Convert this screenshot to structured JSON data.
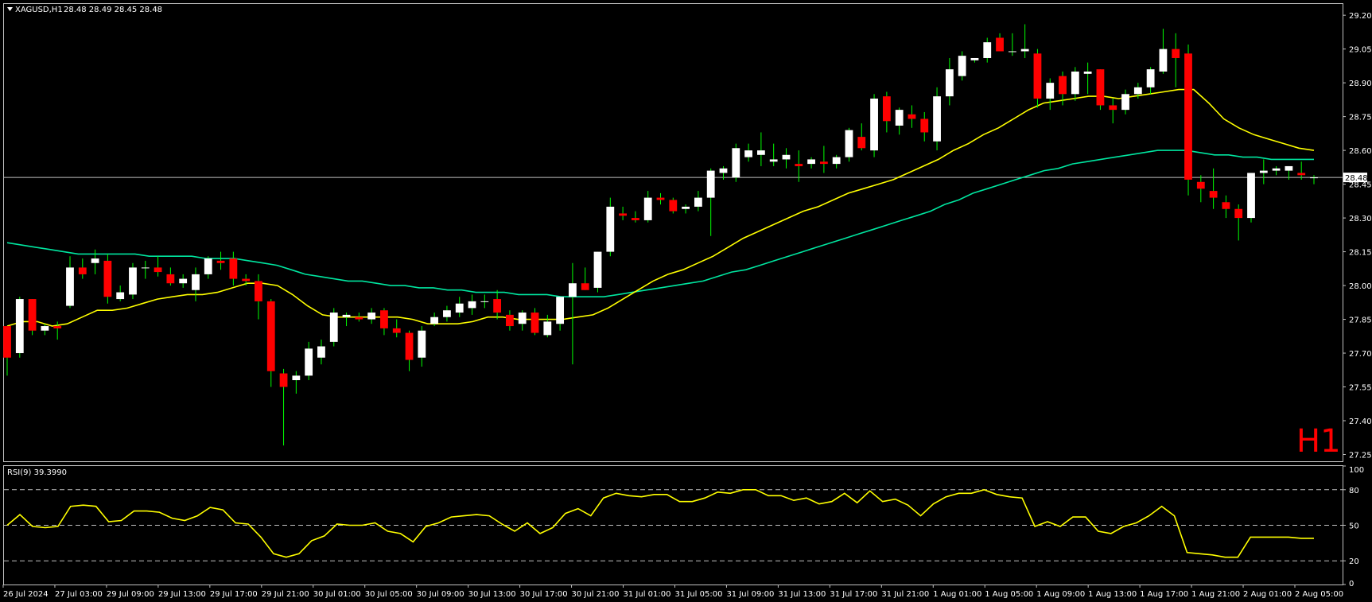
{
  "header": {
    "symbol": "XAGUSD,H1",
    "ohlc": "28.48 28.49 28.45 28.48"
  },
  "timeframe_label": "H1",
  "current_price_label": "28.48",
  "colors": {
    "background": "#000000",
    "frame": "#c0c0c0",
    "bull_candle": "#ffffff",
    "bear_candle": "#ff0000",
    "wick": "#00ff00",
    "ma_fast": "#ffff00",
    "ma_slow": "#00e6a0",
    "rsi_line": "#ffff00",
    "timeframe_label": "#ff0000"
  },
  "rsi_panel": {
    "label": "RSI(9) 39.3990",
    "levels": [
      80,
      50,
      20
    ],
    "ticks": [
      "100",
      "80",
      "50",
      "20",
      "0"
    ]
  },
  "chart_data": {
    "type": "candlestick",
    "symbol": "XAGUSD",
    "price_axis": {
      "min": 27.22,
      "max": 29.25,
      "ticks": [
        "29.20",
        "29.05",
        "28.90",
        "28.75",
        "28.60",
        "28.45",
        "28.30",
        "28.15",
        "28.00",
        "27.85",
        "27.70",
        "27.55",
        "27.40",
        "27.25"
      ]
    },
    "time_axis_labels": [
      "26 Jul 2024",
      "27 Jul 03:00",
      "29 Jul 09:00",
      "29 Jul 13:00",
      "29 Jul 17:00",
      "29 Jul 21:00",
      "30 Jul 01:00",
      "30 Jul 05:00",
      "30 Jul 09:00",
      "30 Jul 13:00",
      "30 Jul 17:00",
      "30 Jul 21:00",
      "31 Jul 01:00",
      "31 Jul 05:00",
      "31 Jul 09:00",
      "31 Jul 13:00",
      "31 Jul 17:00",
      "31 Jul 21:00",
      "1 Aug 01:00",
      "1 Aug 05:00",
      "1 Aug 09:00",
      "1 Aug 13:00",
      "1 Aug 17:00",
      "1 Aug 21:00",
      "2 Aug 01:00",
      "2 Aug 05:00"
    ],
    "current_price": 28.48,
    "candles": [
      [
        27.82,
        27.82,
        27.6,
        27.68
      ],
      [
        27.7,
        27.95,
        27.68,
        27.94
      ],
      [
        27.94,
        27.94,
        27.78,
        27.8
      ],
      [
        27.8,
        27.83,
        27.78,
        27.82
      ],
      [
        27.82,
        27.84,
        27.76,
        27.81
      ],
      [
        27.91,
        28.13,
        27.9,
        28.08
      ],
      [
        28.08,
        28.12,
        28.03,
        28.05
      ],
      [
        28.1,
        28.16,
        28.05,
        28.12
      ],
      [
        28.11,
        28.14,
        27.92,
        27.95
      ],
      [
        27.94,
        28.0,
        27.93,
        27.97
      ],
      [
        27.96,
        28.1,
        27.94,
        28.08
      ],
      [
        28.08,
        28.11,
        28.03,
        28.08
      ],
      [
        28.08,
        28.13,
        28.04,
        28.06
      ],
      [
        28.05,
        28.08,
        28.0,
        28.01
      ],
      [
        28.01,
        28.05,
        27.99,
        28.03
      ],
      [
        27.98,
        28.08,
        27.93,
        28.05
      ],
      [
        28.05,
        28.13,
        28.03,
        28.12
      ],
      [
        28.11,
        28.15,
        28.07,
        28.1
      ],
      [
        28.12,
        28.15,
        28.0,
        28.03
      ],
      [
        28.03,
        28.05,
        28.0,
        28.02
      ],
      [
        28.02,
        28.05,
        27.85,
        27.93
      ],
      [
        27.93,
        27.94,
        27.55,
        27.62
      ],
      [
        27.61,
        27.63,
        27.29,
        27.55
      ],
      [
        27.58,
        27.62,
        27.52,
        27.6
      ],
      [
        27.6,
        27.75,
        27.58,
        27.72
      ],
      [
        27.68,
        27.76,
        27.65,
        27.73
      ],
      [
        27.75,
        27.9,
        27.73,
        27.88
      ],
      [
        27.86,
        27.88,
        27.82,
        27.87
      ],
      [
        27.86,
        27.88,
        27.84,
        27.85
      ],
      [
        27.85,
        27.9,
        27.83,
        27.88
      ],
      [
        27.89,
        27.9,
        27.78,
        27.81
      ],
      [
        27.81,
        27.85,
        27.77,
        27.79
      ],
      [
        27.79,
        27.8,
        27.62,
        27.67
      ],
      [
        27.68,
        27.82,
        27.64,
        27.8
      ],
      [
        27.83,
        27.88,
        27.82,
        27.86
      ],
      [
        27.86,
        27.91,
        27.84,
        27.89
      ],
      [
        27.88,
        27.95,
        27.86,
        27.92
      ],
      [
        27.9,
        27.96,
        27.87,
        27.93
      ],
      [
        27.93,
        27.96,
        27.9,
        27.93
      ],
      [
        27.94,
        27.98,
        27.85,
        27.88
      ],
      [
        27.87,
        27.89,
        27.8,
        27.82
      ],
      [
        27.83,
        27.89,
        27.8,
        27.88
      ],
      [
        27.88,
        27.9,
        27.78,
        27.79
      ],
      [
        27.78,
        27.87,
        27.77,
        27.84
      ],
      [
        27.83,
        27.95,
        27.8,
        27.95
      ],
      [
        27.95,
        28.1,
        27.65,
        28.01
      ],
      [
        28.01,
        28.08,
        27.98,
        27.98
      ],
      [
        27.99,
        28.15,
        27.97,
        28.15
      ],
      [
        28.15,
        28.39,
        28.13,
        28.35
      ],
      [
        28.32,
        28.35,
        28.29,
        28.31
      ],
      [
        28.3,
        28.33,
        28.28,
        28.29
      ],
      [
        28.29,
        28.42,
        28.28,
        28.39
      ],
      [
        28.39,
        28.41,
        28.36,
        28.38
      ],
      [
        28.38,
        28.39,
        28.32,
        28.33
      ],
      [
        28.34,
        28.36,
        28.32,
        28.35
      ],
      [
        28.35,
        28.42,
        28.33,
        28.39
      ],
      [
        28.39,
        28.52,
        28.22,
        28.51
      ],
      [
        28.5,
        28.53,
        28.47,
        28.52
      ],
      [
        28.48,
        28.63,
        28.46,
        28.61
      ],
      [
        28.57,
        28.63,
        28.55,
        28.6
      ],
      [
        28.58,
        28.68,
        28.53,
        28.6
      ],
      [
        28.55,
        28.63,
        28.53,
        28.56
      ],
      [
        28.56,
        28.61,
        28.52,
        28.58
      ],
      [
        28.54,
        28.6,
        28.46,
        28.53
      ],
      [
        28.54,
        28.57,
        28.52,
        28.56
      ],
      [
        28.55,
        28.62,
        28.5,
        28.54
      ],
      [
        28.54,
        28.58,
        28.52,
        28.57
      ],
      [
        28.57,
        28.7,
        28.55,
        28.69
      ],
      [
        28.66,
        28.72,
        28.6,
        28.61
      ],
      [
        28.6,
        28.85,
        28.57,
        28.83
      ],
      [
        28.84,
        28.86,
        28.68,
        28.73
      ],
      [
        28.71,
        28.79,
        28.67,
        28.78
      ],
      [
        28.76,
        28.8,
        28.7,
        28.74
      ],
      [
        28.74,
        28.77,
        28.64,
        28.68
      ],
      [
        28.64,
        28.88,
        28.6,
        28.84
      ],
      [
        28.84,
        29.01,
        28.8,
        28.96
      ],
      [
        28.93,
        29.04,
        28.91,
        29.02
      ],
      [
        29.0,
        29.01,
        28.99,
        29.01
      ],
      [
        29.01,
        29.1,
        28.99,
        29.08
      ],
      [
        29.1,
        29.12,
        29.05,
        29.04
      ],
      [
        29.04,
        29.12,
        29.02,
        29.04
      ],
      [
        29.04,
        29.16,
        29.01,
        29.05
      ],
      [
        29.03,
        29.05,
        28.79,
        28.83
      ],
      [
        28.83,
        28.92,
        28.78,
        28.9
      ],
      [
        28.93,
        28.95,
        28.8,
        28.85
      ],
      [
        28.85,
        28.97,
        28.82,
        28.95
      ],
      [
        28.94,
        28.99,
        28.85,
        28.95
      ],
      [
        28.96,
        28.96,
        28.78,
        28.8
      ],
      [
        28.8,
        28.83,
        28.72,
        28.78
      ],
      [
        28.78,
        28.87,
        28.76,
        28.85
      ],
      [
        28.85,
        28.9,
        28.83,
        28.88
      ],
      [
        28.88,
        28.97,
        28.85,
        28.96
      ],
      [
        28.95,
        29.14,
        28.94,
        29.05
      ],
      [
        29.05,
        29.12,
        28.88,
        29.01
      ],
      [
        29.03,
        29.07,
        28.4,
        28.47
      ],
      [
        28.46,
        28.49,
        28.37,
        28.43
      ],
      [
        28.42,
        28.52,
        28.34,
        28.39
      ],
      [
        28.37,
        28.4,
        28.3,
        28.34
      ],
      [
        28.34,
        28.36,
        28.2,
        28.3
      ],
      [
        28.3,
        28.5,
        28.28,
        28.5
      ],
      [
        28.5,
        28.56,
        28.45,
        28.51
      ],
      [
        28.51,
        28.53,
        28.49,
        28.52
      ],
      [
        28.51,
        28.53,
        28.47,
        28.53
      ],
      [
        28.5,
        28.55,
        28.47,
        28.49
      ],
      [
        28.48,
        28.49,
        28.45,
        28.48
      ]
    ],
    "ma_fast": [
      27.82,
      27.84,
      27.84,
      27.82,
      27.83,
      27.86,
      27.89,
      27.89,
      27.9,
      27.92,
      27.94,
      27.95,
      27.96,
      27.96,
      27.97,
      27.99,
      28.01,
      28.01,
      28.0,
      27.96,
      27.91,
      27.87,
      27.86,
      27.86,
      27.86,
      27.86,
      27.86,
      27.85,
      27.83,
      27.83,
      27.83,
      27.84,
      27.86,
      27.86,
      27.85,
      27.85,
      27.85,
      27.85,
      27.86,
      27.87,
      27.9,
      27.94,
      27.98,
      28.02,
      28.05,
      28.07,
      28.1,
      28.13,
      28.17,
      28.21,
      28.24,
      28.27,
      28.3,
      28.33,
      28.35,
      28.38,
      28.41,
      28.43,
      28.45,
      28.47,
      28.5,
      28.53,
      28.56,
      28.6,
      28.63,
      28.67,
      28.7,
      28.74,
      28.78,
      28.81,
      28.82,
      28.83,
      28.84,
      28.84,
      28.83,
      28.84,
      28.85,
      28.86,
      28.87,
      28.87,
      28.81,
      28.74,
      28.7,
      28.67,
      28.65,
      28.63,
      28.61,
      28.6
    ],
    "ma_fast_start": 0,
    "ma_slow": [
      28.19,
      28.18,
      28.17,
      28.16,
      28.15,
      28.14,
      28.14,
      28.14,
      28.14,
      28.14,
      28.13,
      28.13,
      28.13,
      28.13,
      28.12,
      28.12,
      28.12,
      28.11,
      28.1,
      28.09,
      28.07,
      28.05,
      28.04,
      28.03,
      28.02,
      28.02,
      28.01,
      28.0,
      28.0,
      27.99,
      27.99,
      27.98,
      27.98,
      27.97,
      27.97,
      27.97,
      27.96,
      27.96,
      27.96,
      27.95,
      27.95,
      27.95,
      27.95,
      27.96,
      27.97,
      27.98,
      27.99,
      28.0,
      28.01,
      28.02,
      28.04,
      28.06,
      28.07,
      28.09,
      28.11,
      28.13,
      28.15,
      28.17,
      28.19,
      28.21,
      28.23,
      28.25,
      28.27,
      28.29,
      28.31,
      28.33,
      28.36,
      28.38,
      28.41,
      28.43,
      28.45,
      28.47,
      28.49,
      28.51,
      28.52,
      28.54,
      28.55,
      28.56,
      28.57,
      28.58,
      28.59,
      28.6,
      28.6,
      28.6,
      28.59,
      28.58,
      28.58,
      28.57,
      28.57,
      28.56,
      28.56,
      28.56,
      28.56
    ],
    "rsi": [
      50,
      59,
      49,
      48,
      49,
      66,
      67,
      66,
      53,
      54,
      62,
      62,
      61,
      56,
      54,
      58,
      65,
      63,
      52,
      51,
      40,
      26,
      23,
      26,
      37,
      41,
      51,
      50,
      50,
      52,
      45,
      43,
      36,
      49,
      52,
      57,
      58,
      59,
      58,
      51,
      45,
      52,
      43,
      48,
      60,
      64,
      58,
      73,
      77,
      75,
      74,
      76,
      76,
      70,
      70,
      73,
      78,
      77,
      80,
      80,
      75,
      75,
      71,
      73,
      68,
      70,
      77,
      69,
      79,
      70,
      72,
      67,
      58,
      68,
      74,
      77,
      77,
      80,
      76,
      74,
      73,
      49,
      53,
      49,
      57,
      57,
      45,
      43,
      49,
      52,
      58,
      66,
      58,
      27,
      26,
      25,
      23,
      23,
      40,
      40,
      40,
      40,
      39,
      39
    ]
  }
}
